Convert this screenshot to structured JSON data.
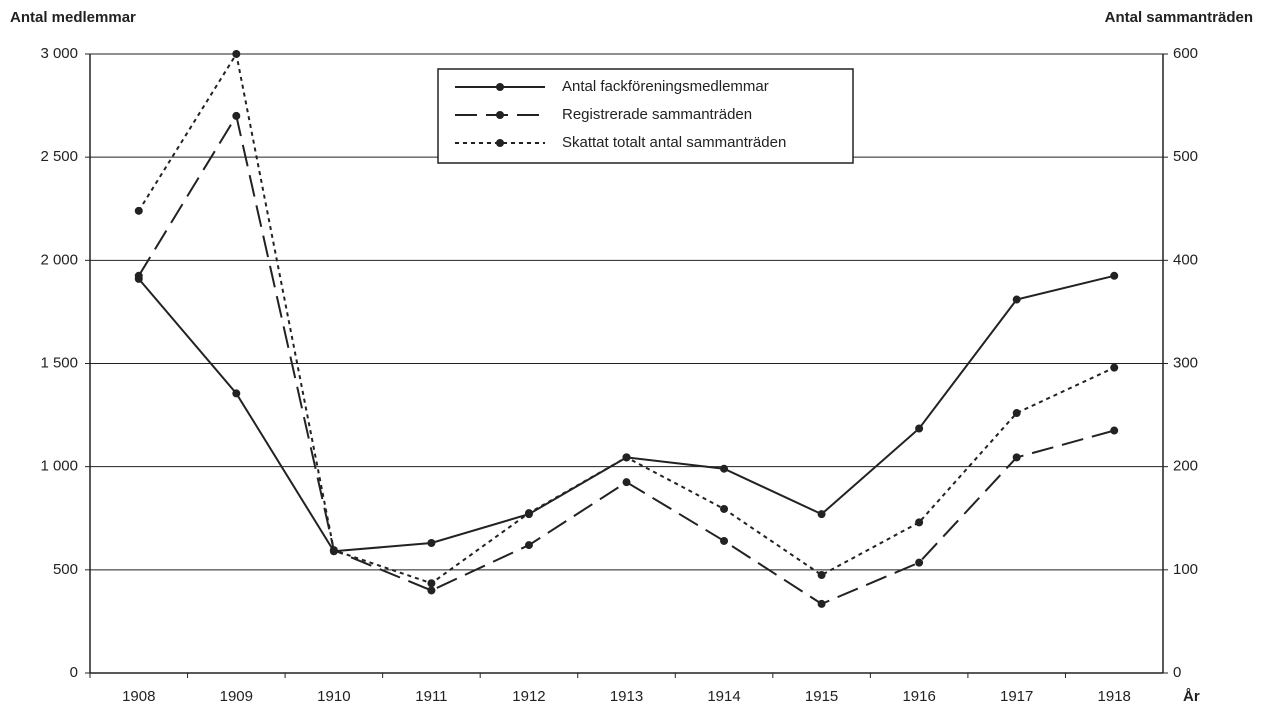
{
  "chart_data": {
    "type": "line",
    "ylabel": "Antal medlemmar",
    "y2label": "Antal sammanträden",
    "xlabel": "År",
    "categories": [
      "1908",
      "1909",
      "1910",
      "1911",
      "1912",
      "1913",
      "1914",
      "1915",
      "1916",
      "1917",
      "1918"
    ],
    "series": [
      {
        "name": "Antal fackföreningsmedlemmar",
        "color": "#222222",
        "dash": "solid",
        "values": [
          1910,
          1355,
          590,
          630,
          770,
          1045,
          990,
          770,
          1185,
          1810,
          1925
        ]
      },
      {
        "name": "Registrerade sammanträden",
        "color": "#222222",
        "dash": "dashed",
        "axis": "y2",
        "values": [
          385,
          540,
          119,
          80,
          124,
          185,
          128,
          67,
          107,
          209,
          235
        ]
      },
      {
        "name": "Skattat totalt antal sammanträden",
        "color": "#222222",
        "dash": "dotted",
        "axis": "y2",
        "values": [
          448,
          600,
          119,
          87,
          155,
          209,
          159,
          95,
          146,
          252,
          296
        ]
      }
    ],
    "ylim": [
      0,
      3000
    ],
    "yticks": [
      0,
      500,
      {
        "value": 1000,
        "label": "1 000"
      },
      {
        "value": 1500,
        "label": "1 500"
      },
      {
        "value": 2000,
        "label": "2 000"
      },
      {
        "value": 2500,
        "label": "2 500"
      },
      {
        "value": 3000,
        "label": "3 000"
      }
    ],
    "y2lim": [
      0,
      600
    ],
    "y2ticks": [
      0,
      100,
      200,
      300,
      400,
      500,
      600
    ],
    "grid": true
  }
}
